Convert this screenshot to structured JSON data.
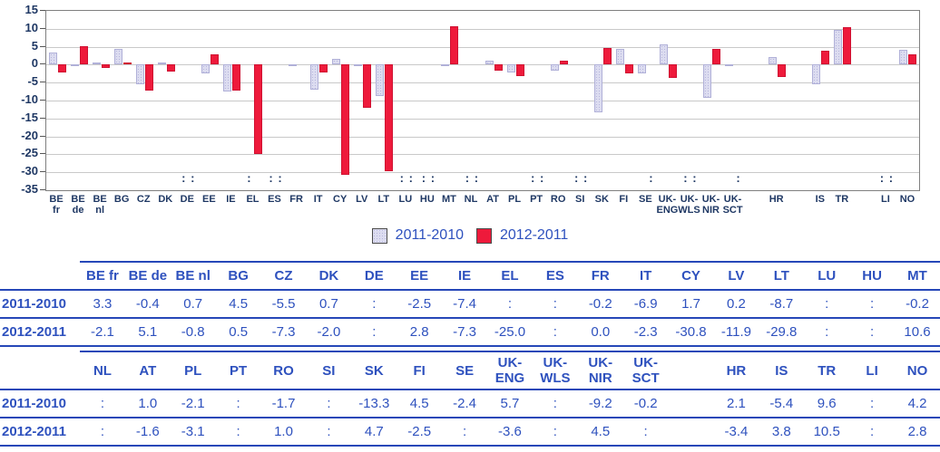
{
  "chart_data": {
    "type": "bar",
    "title": "",
    "ylabel": "",
    "xlabel": "",
    "ylim": [
      -35,
      15
    ],
    "yticks": [
      15,
      10,
      5,
      0,
      -5,
      -10,
      -15,
      -20,
      -25,
      -30,
      -35
    ],
    "grid": true,
    "legend_position": "bottom-center",
    "missing_value_symbol": ":",
    "series": [
      {
        "name": "2011-2010",
        "color": "#dcdcf0"
      },
      {
        "name": "2012-2011",
        "color": "#ee1a3b"
      }
    ],
    "categories": [
      {
        "label": "BE fr",
        "lines": [
          "BE",
          "fr"
        ],
        "v": [
          3.3,
          -2.1
        ]
      },
      {
        "label": "BE de",
        "lines": [
          "BE",
          "de"
        ],
        "v": [
          -0.4,
          5.1
        ]
      },
      {
        "label": "BE nl",
        "lines": [
          "BE",
          "nl"
        ],
        "v": [
          0.7,
          -0.8
        ]
      },
      {
        "label": "BG",
        "lines": [
          "BG"
        ],
        "v": [
          4.5,
          0.5
        ]
      },
      {
        "label": "CZ",
        "lines": [
          "CZ"
        ],
        "v": [
          -5.5,
          -7.3
        ]
      },
      {
        "label": "DK",
        "lines": [
          "DK"
        ],
        "v": [
          0.7,
          -2.0
        ]
      },
      {
        "label": "DE",
        "lines": [
          "DE"
        ],
        "v": [
          null,
          null
        ]
      },
      {
        "label": "EE",
        "lines": [
          "EE"
        ],
        "v": [
          -2.5,
          2.8
        ]
      },
      {
        "label": "IE",
        "lines": [
          "IE"
        ],
        "v": [
          -7.4,
          -7.3
        ]
      },
      {
        "label": "EL",
        "lines": [
          "EL"
        ],
        "v": [
          null,
          -25.0
        ]
      },
      {
        "label": "ES",
        "lines": [
          "ES"
        ],
        "v": [
          null,
          null
        ]
      },
      {
        "label": "FR",
        "lines": [
          "FR"
        ],
        "v": [
          -0.2,
          0.0
        ]
      },
      {
        "label": "IT",
        "lines": [
          "IT"
        ],
        "v": [
          -6.9,
          -2.3
        ]
      },
      {
        "label": "CY",
        "lines": [
          "CY"
        ],
        "v": [
          1.7,
          -30.8
        ]
      },
      {
        "label": "LV",
        "lines": [
          "LV"
        ],
        "v": [
          0.2,
          -11.9
        ]
      },
      {
        "label": "LT",
        "lines": [
          "LT"
        ],
        "v": [
          -8.7,
          -29.8
        ]
      },
      {
        "label": "LU",
        "lines": [
          "LU"
        ],
        "v": [
          null,
          null
        ]
      },
      {
        "label": "HU",
        "lines": [
          "HU"
        ],
        "v": [
          null,
          null
        ]
      },
      {
        "label": "MT",
        "lines": [
          "MT"
        ],
        "v": [
          -0.2,
          10.6
        ]
      },
      {
        "label": "NL",
        "lines": [
          "NL"
        ],
        "v": [
          null,
          null
        ]
      },
      {
        "label": "AT",
        "lines": [
          "AT"
        ],
        "v": [
          1.0,
          -1.6
        ]
      },
      {
        "label": "PL",
        "lines": [
          "PL"
        ],
        "v": [
          -2.1,
          -3.1
        ]
      },
      {
        "label": "PT",
        "lines": [
          "PT"
        ],
        "v": [
          null,
          null
        ]
      },
      {
        "label": "RO",
        "lines": [
          "RO"
        ],
        "v": [
          -1.7,
          1.0
        ]
      },
      {
        "label": "SI",
        "lines": [
          "SI"
        ],
        "v": [
          null,
          null
        ]
      },
      {
        "label": "SK",
        "lines": [
          "SK"
        ],
        "v": [
          -13.3,
          4.7
        ]
      },
      {
        "label": "FI",
        "lines": [
          "FI"
        ],
        "v": [
          4.5,
          -2.5
        ]
      },
      {
        "label": "SE",
        "lines": [
          "SE"
        ],
        "v": [
          -2.4,
          null
        ]
      },
      {
        "label": "UK-ENG",
        "lines": [
          "UK-",
          "ENG"
        ],
        "v": [
          5.7,
          -3.6
        ]
      },
      {
        "label": "UK-WLS",
        "lines": [
          "UK-",
          "WLS"
        ],
        "v": [
          null,
          null
        ]
      },
      {
        "label": "UK-NIR",
        "lines": [
          "UK-",
          "NIR"
        ],
        "v": [
          -9.2,
          4.5
        ]
      },
      {
        "label": "UK-SCT",
        "lines": [
          "UK-",
          "SCT"
        ],
        "v": [
          -0.2,
          null
        ]
      },
      {
        "spacer": true
      },
      {
        "label": "HR",
        "lines": [
          "HR"
        ],
        "v": [
          2.1,
          -3.4
        ]
      },
      {
        "spacer": true
      },
      {
        "label": "IS",
        "lines": [
          "IS"
        ],
        "v": [
          -5.4,
          3.8
        ]
      },
      {
        "label": "TR",
        "lines": [
          "TR"
        ],
        "v": [
          9.6,
          10.5
        ]
      },
      {
        "spacer": true
      },
      {
        "label": "LI",
        "lines": [
          "LI"
        ],
        "v": [
          null,
          null
        ]
      },
      {
        "label": "NO",
        "lines": [
          "NO"
        ],
        "v": [
          4.2,
          2.8
        ]
      }
    ]
  },
  "legend": {
    "items": [
      {
        "label": "2011-2010"
      },
      {
        "label": "2012-2011"
      }
    ]
  },
  "colors": {
    "series_2011_2010": "#dcdcf0",
    "series_2012_2011": "#ee1a3b",
    "axis_text": "#1f3864",
    "table_text": "#2e51be",
    "table_rule": "#2647b8",
    "gridline": "#c9c9c9"
  },
  "table": {
    "blocks": [
      {
        "headers": [
          "BE fr",
          "BE de",
          "BE nl",
          "BG",
          "CZ",
          "DK",
          "DE",
          "EE",
          "IE",
          "EL",
          "ES",
          "FR",
          "IT",
          "CY",
          "LV",
          "LT",
          "LU",
          "HU",
          "MT"
        ],
        "rows": [
          {
            "label": "2011-2010",
            "values": [
              "3.3",
              "-0.4",
              "0.7",
              "4.5",
              "-5.5",
              "0.7",
              ":",
              "-2.5",
              "-7.4",
              ":",
              ":",
              "-0.2",
              "-6.9",
              "1.7",
              "0.2",
              "-8.7",
              ":",
              ":",
              "-0.2"
            ]
          },
          {
            "label": "2012-2011",
            "values": [
              "-2.1",
              "5.1",
              "-0.8",
              "0.5",
              "-7.3",
              "-2.0",
              ":",
              "2.8",
              "-7.3",
              "-25.0",
              ":",
              "0.0",
              "-2.3",
              "-30.8",
              "-11.9",
              "-29.8",
              ":",
              ":",
              "10.6"
            ]
          }
        ]
      },
      {
        "headers": [
          "NL",
          "AT",
          "PL",
          "PT",
          "RO",
          "SI",
          "SK",
          "FI",
          "SE",
          "UK-\nENG",
          "UK-\nWLS",
          "UK-\nNIR",
          "UK-\nSCT",
          "",
          "HR",
          "IS",
          "TR",
          "LI",
          "NO"
        ],
        "rows": [
          {
            "label": "2011-2010",
            "values": [
              ":",
              "1.0",
              "-2.1",
              ":",
              "-1.7",
              ":",
              "-13.3",
              "4.5",
              "-2.4",
              "5.7",
              ":",
              "-9.2",
              "-0.2",
              "",
              "2.1",
              "-5.4",
              "9.6",
              ":",
              "4.2"
            ]
          },
          {
            "label": "2012-2011",
            "values": [
              ":",
              "-1.6",
              "-3.1",
              ":",
              "1.0",
              ":",
              "4.7",
              "-2.5",
              ":",
              "-3.6",
              ":",
              "4.5",
              ":",
              "",
              "-3.4",
              "3.8",
              "10.5",
              ":",
              "2.8"
            ]
          }
        ]
      }
    ]
  }
}
